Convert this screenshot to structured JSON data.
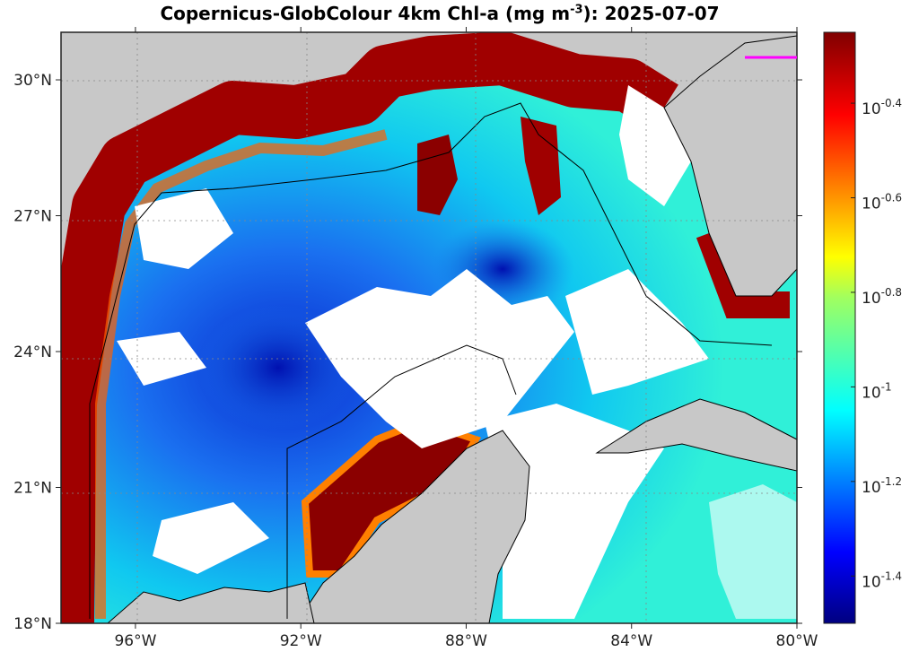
{
  "title": {
    "main": "Copernicus-GlobColour 4km Chl-a (mg m",
    "sup": "-3",
    "tail": "): 2025-07-07"
  },
  "map": {
    "lat_range": [
      18,
      31.05
    ],
    "lon_range": [
      -97.8,
      -80
    ],
    "lat_labels": [
      {
        "value": 30,
        "text": "30°N"
      },
      {
        "value": 27,
        "text": "27°N"
      },
      {
        "value": 24,
        "text": "24°N"
      },
      {
        "value": 21,
        "text": "21°N"
      },
      {
        "value": 18,
        "text": "18°N"
      }
    ],
    "lon_labels": [
      {
        "value": -96,
        "text": "96°W"
      },
      {
        "value": -92,
        "text": "92°W"
      },
      {
        "value": -88,
        "text": "88°W"
      },
      {
        "value": -84,
        "text": "84°W"
      },
      {
        "value": -80,
        "text": "80°W"
      }
    ],
    "land_color": "#c8c8c8",
    "nodata_color": "#ffffff"
  },
  "colorbar": {
    "scale": "log10",
    "range": [
      -1.5,
      -0.25
    ],
    "colormap": "jet",
    "ticks": [
      {
        "value": -0.4,
        "base": "10",
        "exp": "-0.4"
      },
      {
        "value": -0.6,
        "base": "10",
        "exp": "-0.6"
      },
      {
        "value": -0.8,
        "base": "10",
        "exp": "-0.8"
      },
      {
        "value": -1,
        "base": "10",
        "exp": "-1"
      },
      {
        "value": -1.2,
        "base": "10",
        "exp": "-1.2"
      },
      {
        "value": -1.4,
        "base": "10",
        "exp": "-1.4"
      }
    ]
  }
}
